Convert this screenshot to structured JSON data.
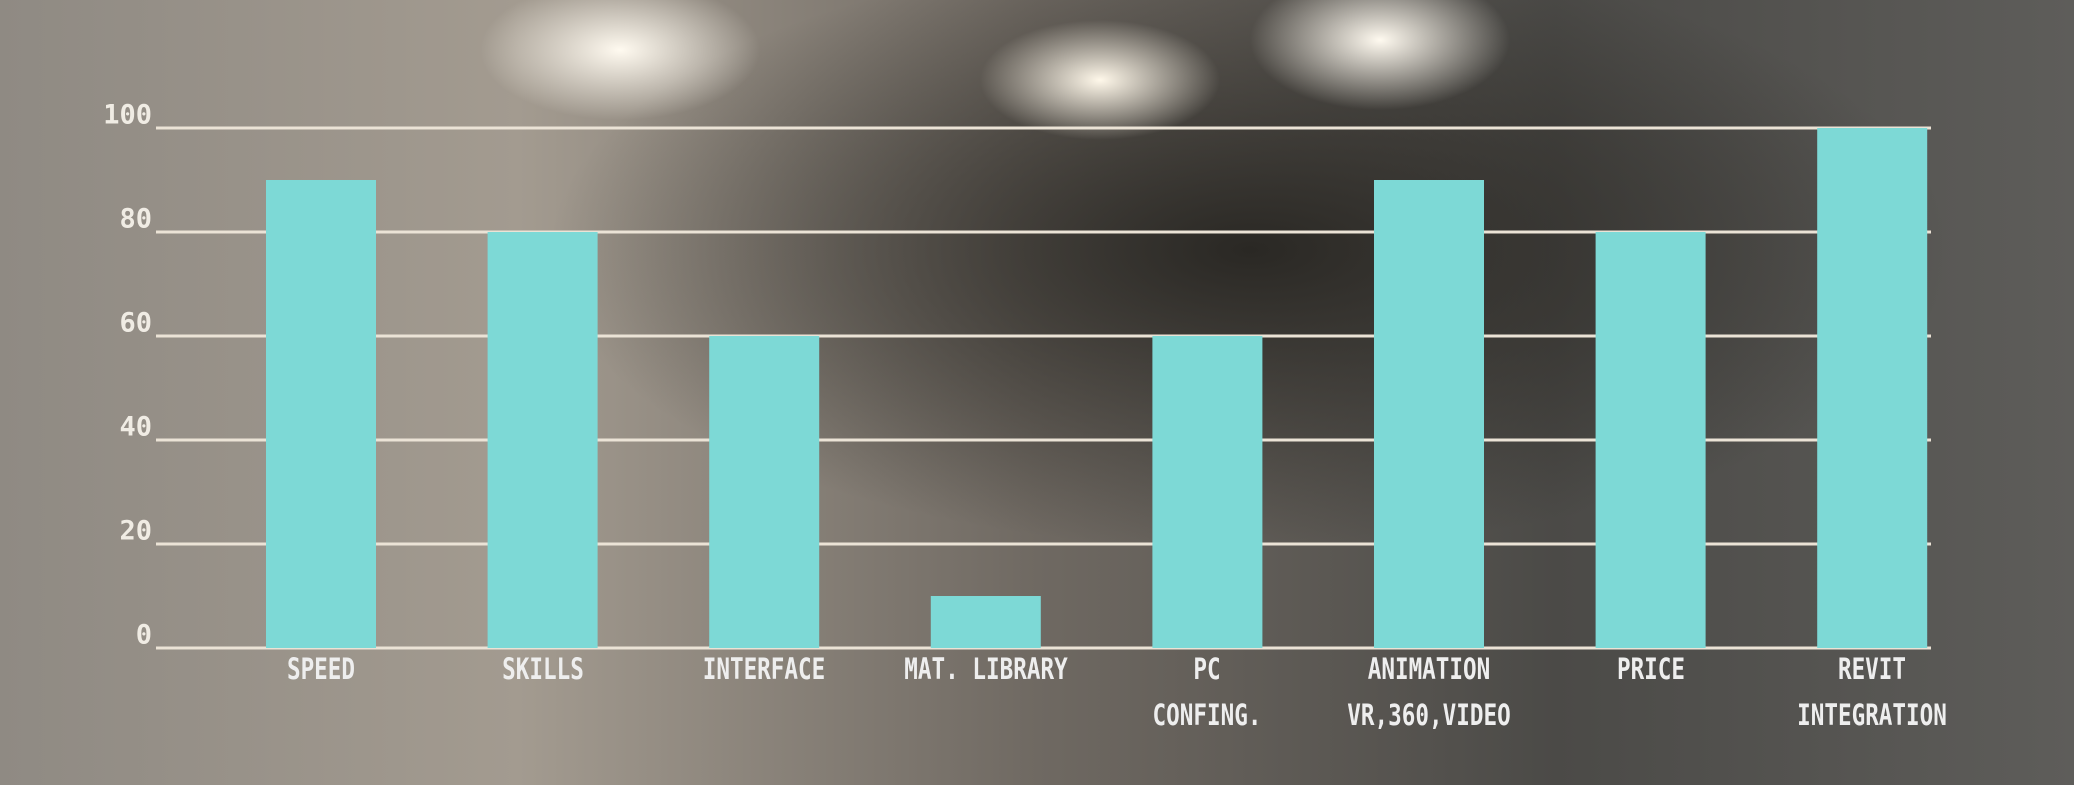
{
  "chart_data": {
    "type": "bar",
    "categories": [
      "SPEED",
      "SKILLS",
      "INTERFACE",
      "MAT. LIBRARY",
      "PC\nCONFING.",
      "ANIMATION\nVR,360,VIDEO",
      "PRICE",
      "REVIT\nINTEGRATION"
    ],
    "values": [
      90,
      80,
      60,
      10,
      60,
      90,
      80,
      100
    ],
    "color": "#7dd9d6",
    "ylim": [
      0,
      100
    ],
    "yticks": [
      0,
      20,
      40,
      60,
      80,
      100
    ],
    "grid": true
  }
}
